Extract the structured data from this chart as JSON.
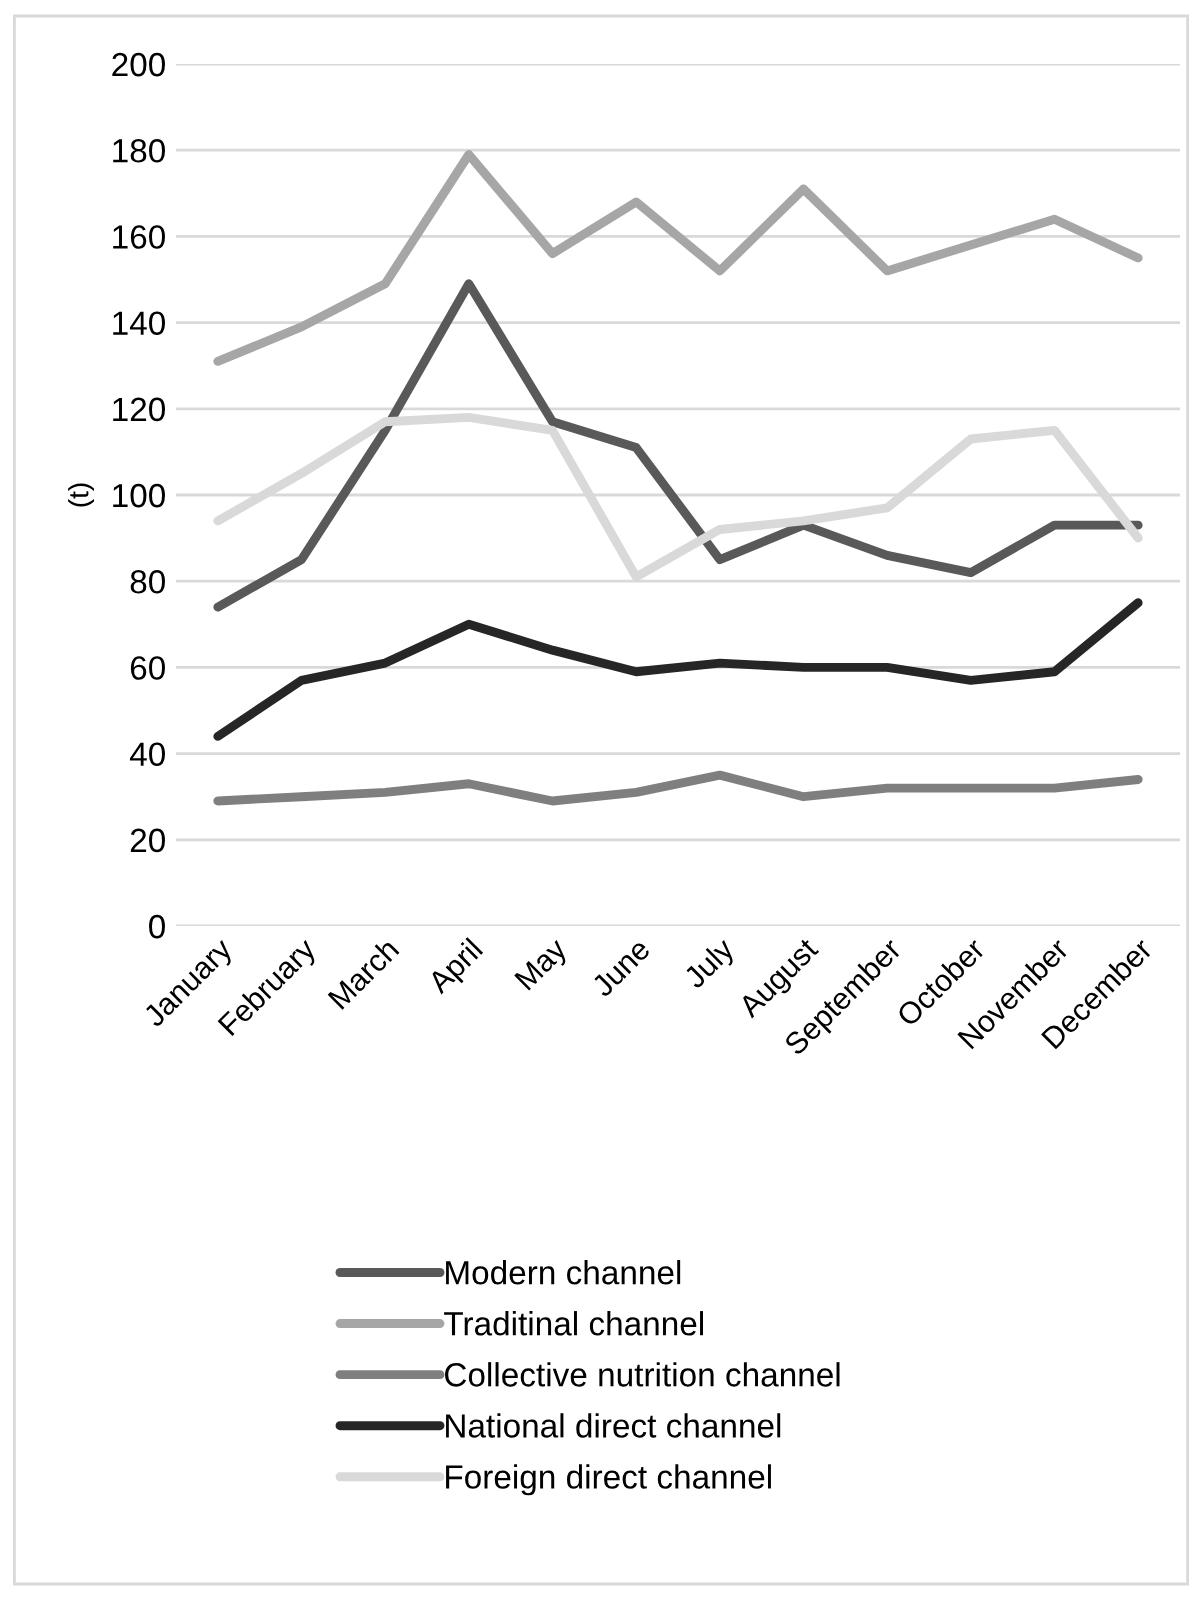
{
  "chart_data": {
    "type": "line",
    "ylabel": "(t)",
    "categories": [
      "January",
      "February",
      "March",
      "April",
      "May",
      "June",
      "July",
      "August",
      "September",
      "October",
      "November",
      "December"
    ],
    "series": [
      {
        "name": "Modern channel",
        "color": "#595959",
        "values": [
          74,
          85,
          115,
          149,
          117,
          111,
          85,
          93,
          86,
          82,
          93,
          93
        ]
      },
      {
        "name": "Traditinal channel",
        "color": "#a6a6a6",
        "values": [
          131,
          139,
          149,
          179,
          156,
          168,
          152,
          171,
          152,
          158,
          164,
          155
        ]
      },
      {
        "name": "Collective nutrition channel",
        "color": "#7f7f7f",
        "values": [
          29,
          30,
          31,
          33,
          29,
          31,
          35,
          30,
          32,
          32,
          32,
          34
        ]
      },
      {
        "name": "National direct channel",
        "color": "#262626",
        "values": [
          44,
          57,
          61,
          70,
          64,
          59,
          61,
          60,
          60,
          57,
          59,
          75
        ]
      },
      {
        "name": "Foreign direct channel",
        "color": "#d9d9d9",
        "values": [
          94,
          105,
          117,
          118,
          115,
          81,
          92,
          94,
          97,
          113,
          115,
          90
        ]
      }
    ],
    "ylim": [
      0,
      200
    ],
    "yticks": [
      0,
      20,
      40,
      60,
      80,
      100,
      120,
      140,
      160,
      180,
      200
    ],
    "grid": "y",
    "legend": "bottom",
    "marker": "none",
    "line_style": "solid"
  }
}
